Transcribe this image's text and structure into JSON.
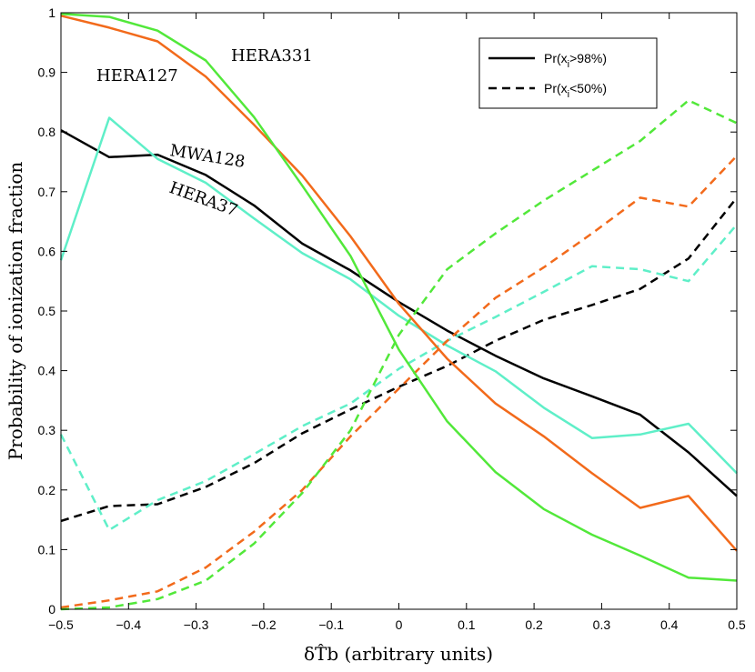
{
  "chart_data": {
    "type": "line",
    "xlabel": "δT̂b (arbitrary units)",
    "ylabel": "Probability of ionization fraction",
    "xlim": [
      -0.5,
      0.5
    ],
    "ylim": [
      0,
      1
    ],
    "x_ticks": [
      "−0.5",
      "−0.4",
      "−0.3",
      "−0.2",
      "−0.1",
      "0",
      "0.1",
      "0.2",
      "0.3",
      "0.4",
      "0.5"
    ],
    "y_ticks": [
      "0",
      "0.1",
      "0.2",
      "0.3",
      "0.4",
      "0.5",
      "0.6",
      "0.7",
      "0.8",
      "0.9",
      "1"
    ],
    "x": [
      -0.5,
      -0.4286,
      -0.3571,
      -0.2857,
      -0.2143,
      -0.1429,
      -0.0714,
      0.0,
      0.0714,
      0.1429,
      0.2143,
      0.2857,
      0.3571,
      0.4286,
      0.5
    ],
    "legend": {
      "placement": "top-right",
      "entries": [
        {
          "label_main": "Pr(x",
          "label_sub": "i",
          "label_rest": ">98%)",
          "style": "solid"
        },
        {
          "label_main": "Pr(x",
          "label_sub": "i",
          "label_rest": "<50%)",
          "style": "dashed"
        }
      ]
    },
    "series": [
      {
        "label": "MWA128",
        "color": "#000000",
        "style": "solid",
        "values": [
          0.803,
          0.758,
          0.762,
          0.728,
          0.677,
          0.613,
          0.568,
          0.515,
          0.467,
          0.425,
          0.387,
          0.357,
          0.326,
          0.263,
          0.19
        ]
      },
      {
        "label": "MWA128",
        "color": "#000000",
        "style": "dashed",
        "values": [
          0.148,
          0.173,
          0.176,
          0.205,
          0.245,
          0.295,
          0.335,
          0.373,
          0.408,
          0.45,
          0.485,
          0.51,
          0.537,
          0.588,
          0.69
        ]
      },
      {
        "label": "HERA37",
        "color": "#5FEFC8",
        "style": "solid",
        "values": [
          0.585,
          0.824,
          0.755,
          0.715,
          0.655,
          0.597,
          0.553,
          0.492,
          0.442,
          0.399,
          0.338,
          0.287,
          0.293,
          0.311,
          0.228
        ]
      },
      {
        "label": "HERA37",
        "color": "#5FEFC8",
        "style": "dashed",
        "values": [
          0.293,
          0.133,
          0.183,
          0.215,
          0.26,
          0.307,
          0.345,
          0.403,
          0.45,
          0.49,
          0.532,
          0.575,
          0.57,
          0.55,
          0.645
        ]
      },
      {
        "label": "HERA127",
        "color": "#F26A1B",
        "style": "solid",
        "values": [
          0.995,
          0.975,
          0.952,
          0.893,
          0.812,
          0.727,
          0.625,
          0.512,
          0.42,
          0.345,
          0.29,
          0.228,
          0.17,
          0.19,
          0.098
        ]
      },
      {
        "label": "HERA127",
        "color": "#F26A1B",
        "style": "dashed",
        "values": [
          0.003,
          0.015,
          0.03,
          0.07,
          0.13,
          0.2,
          0.29,
          0.37,
          0.45,
          0.522,
          0.573,
          0.63,
          0.69,
          0.675,
          0.76
        ]
      },
      {
        "label": "HERA331",
        "color": "#52E83A",
        "style": "solid",
        "values": [
          0.998,
          0.993,
          0.97,
          0.92,
          0.825,
          0.71,
          0.592,
          0.435,
          0.315,
          0.23,
          0.168,
          0.125,
          0.09,
          0.053,
          0.048
        ]
      },
      {
        "label": "HERA331",
        "color": "#52E83A",
        "style": "dashed",
        "values": [
          0.0,
          0.003,
          0.017,
          0.048,
          0.11,
          0.195,
          0.3,
          0.46,
          0.57,
          0.63,
          0.685,
          0.735,
          0.785,
          0.853,
          0.815
        ]
      }
    ],
    "annotations": [
      {
        "text": "HERA331",
        "color": "#52E83A"
      },
      {
        "text": "HERA127",
        "color": "#F26A1B"
      },
      {
        "text": "MWA128",
        "color": "#000000"
      },
      {
        "text": "HERA37",
        "color": "#5FEFC8"
      }
    ]
  }
}
